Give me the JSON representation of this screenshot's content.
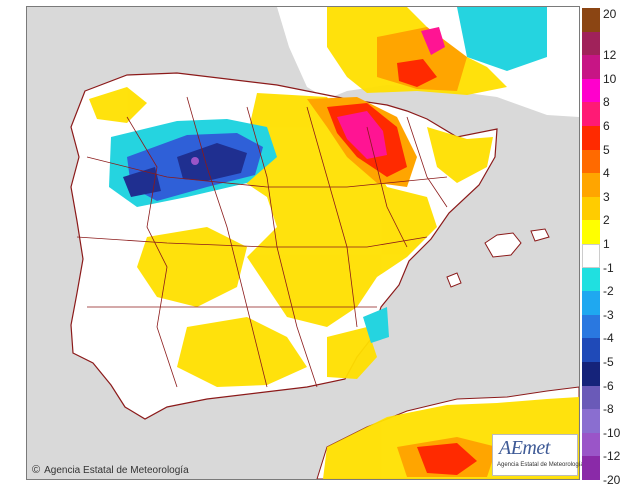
{
  "map": {
    "credit_text": "Agencia Estatal de Meteorología",
    "credit_symbol": "©",
    "logo_brand": "AEmet",
    "logo_subtitle": "Agencia Estatal de Meteorología",
    "colors": {
      "sea": "#d9d9d9",
      "land": "#ffffff",
      "coast": "#8b1a1a",
      "yellow": "#ffe000",
      "orange": "#ffa500",
      "red": "#ff2a00",
      "magenta": "#ff1493",
      "blue": "#2f60d8",
      "darkblue": "#1f2f90",
      "cyan": "#25d4e0"
    }
  },
  "legend": {
    "entries": [
      {
        "label": "20",
        "color": "#8b4513"
      },
      {
        "label": "12",
        "color": "#a0225a"
      },
      {
        "label": "10",
        "color": "#c71585"
      },
      {
        "label": "8",
        "color": "#ff00cc"
      },
      {
        "label": "6",
        "color": "#ff1a75"
      },
      {
        "label": "5",
        "color": "#ff2a00"
      },
      {
        "label": "4",
        "color": "#ff6a00"
      },
      {
        "label": "3",
        "color": "#ffa500"
      },
      {
        "label": "2",
        "color": "#ffcc00"
      },
      {
        "label": "1",
        "color": "#ffff00"
      },
      {
        "label": "-1",
        "color": "#ffffff"
      },
      {
        "label": "-2",
        "color": "#20e0e0"
      },
      {
        "label": "-3",
        "color": "#1fa8f0"
      },
      {
        "label": "-4",
        "color": "#2a78e0"
      },
      {
        "label": "-5",
        "color": "#1f4ab8"
      },
      {
        "label": "-6",
        "color": "#15237a"
      },
      {
        "label": "-8",
        "color": "#6a5ab8"
      },
      {
        "label": "-10",
        "color": "#8a6ed0"
      },
      {
        "label": "-12",
        "color": "#9a55c8"
      },
      {
        "label": "-20",
        "color": "#8a2aa8"
      }
    ]
  }
}
